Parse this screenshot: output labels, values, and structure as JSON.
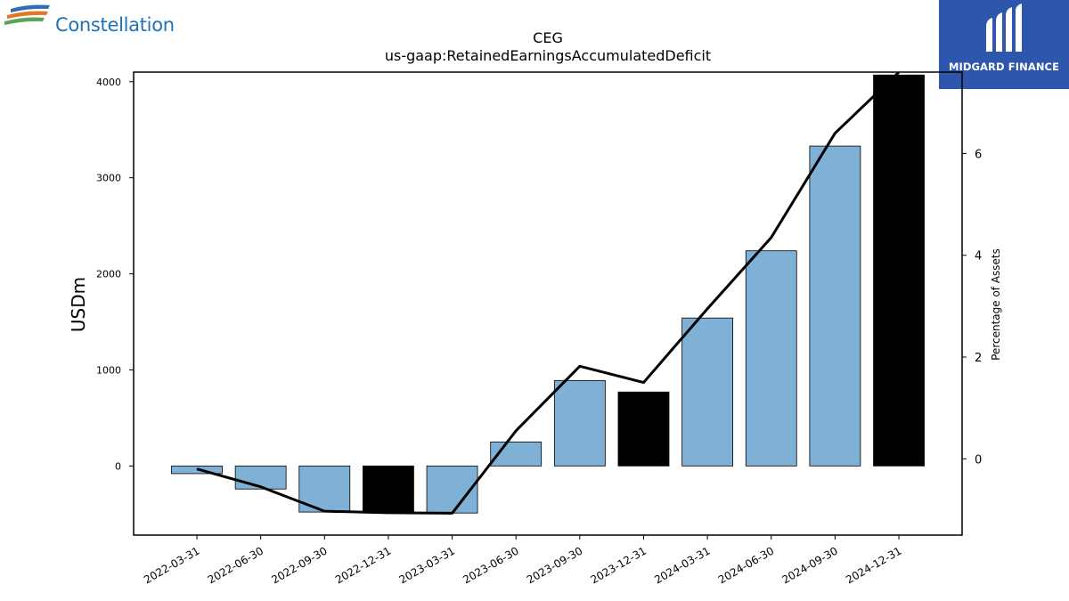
{
  "company": {
    "name": "Constellation"
  },
  "brand": {
    "name": "MIDGARD FINANCE",
    "background": "#2f56ad"
  },
  "chart_data": {
    "type": "bar",
    "title": "CEG",
    "subtitle": "us-gaap:RetainedEarningsAccumulatedDeficit",
    "ylabel": "USDm",
    "y2label": "Percentage of Assets",
    "ylim": [
      -720,
      4100
    ],
    "y2lim": [
      -1.5,
      7.6
    ],
    "yticks": [
      0,
      1000,
      2000,
      3000,
      4000
    ],
    "y2ticks": [
      0,
      2,
      4,
      6
    ],
    "categories": [
      "2022-03-31",
      "2022-06-30",
      "2022-09-30",
      "2022-12-31",
      "2023-03-31",
      "2023-06-30",
      "2023-09-30",
      "2023-12-31",
      "2024-03-31",
      "2024-06-30",
      "2024-09-30",
      "2024-12-31"
    ],
    "series": [
      {
        "type": "bar",
        "values": [
          -80,
          -240,
          -480,
          -490,
          -490,
          250,
          890,
          770,
          1540,
          2240,
          3330,
          4070
        ]
      },
      {
        "type": "line",
        "axis": "right",
        "values": [
          -0.2,
          -0.55,
          -1.03,
          -1.06,
          -1.07,
          0.55,
          1.82,
          1.5,
          2.95,
          4.35,
          6.4,
          7.6
        ]
      }
    ],
    "bar_color": "#7fb0d5",
    "highlight_color": "#000000",
    "highlight_categories": [
      "2022-12-31",
      "2023-12-31",
      "2024-12-31"
    ],
    "line_color": "#000000",
    "grid": false
  }
}
